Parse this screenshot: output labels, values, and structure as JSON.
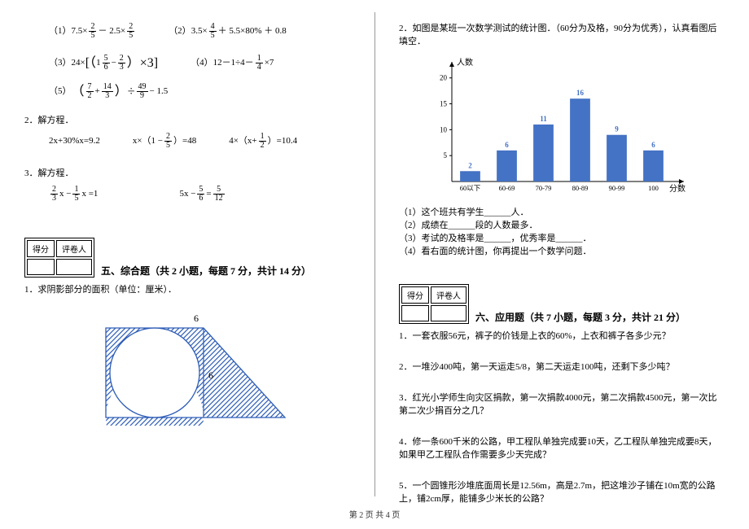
{
  "footer": "第 2 页  共 4 页",
  "left": {
    "eq1_label": "（1）7.5×",
    "eq1_frac1_num": "2",
    "eq1_frac1_den": "5",
    "eq1_mid": " － 2.5×",
    "eq1_frac2_num": "2",
    "eq1_frac2_den": "5",
    "eq2_label": "（2）",
    "eq2_a": "3.5×",
    "eq2_frac_num": "4",
    "eq2_frac_den": "5",
    "eq2_b": " ＋ 5.5×80% ＋ 0.8",
    "eq3_label": "（3）",
    "eq3_a": "24×",
    "eq3_lb": "[（",
    "eq3_f1n": "5",
    "eq3_f1d": "6",
    "eq3_minus": " − ",
    "eq3_f2n": "2",
    "eq3_f2d": "3",
    "eq3_rb": "）×3]",
    "eq4_label": "（4）12－1÷4－",
    "eq4_fn": "1",
    "eq4_fd": "4",
    "eq4_tail": "×7",
    "eq5_label": "（5）",
    "eq5_lp": "（",
    "eq5_f1n": "7",
    "eq5_f1d": "2",
    "eq5_plus": " + ",
    "eq5_f2n": "14",
    "eq5_f2d": "3",
    "eq5_rp": "）÷",
    "eq5_f3n": "49",
    "eq5_f3d": "9",
    "eq5_tail": " − 1.5",
    "h2": "2．解方程．",
    "s2a": "2x+30%x=9.2",
    "s2b_a": "x×（1 − ",
    "s2b_fn": "2",
    "s2b_fd": "5",
    "s2b_b": "）=48",
    "s2c_a": "4×（x+",
    "s2c_fn": "1",
    "s2c_fd": "2",
    "s2c_b": "）=10.4",
    "h3": "3．解方程．",
    "s3a_f1n": "2",
    "s3a_f1d": "3",
    "s3a_mid": " x − ",
    "s3a_f2n": "1",
    "s3a_f2d": "5",
    "s3a_tail": " x =1",
    "s3b_a": "5x − ",
    "s3b_f1n": "5",
    "s3b_f1d": "6",
    "s3b_eq": " = ",
    "s3b_f2n": "5",
    "s3b_f2d": "12",
    "score_h1": "得分",
    "score_h2": "评卷人",
    "sec5_title": "五、综合题（共 2 小题，每题 7 分，共计 14 分）",
    "q5_1": "1．求阴影部分的面积（单位：厘米）．",
    "geo_label": "6",
    "geo_label2": "6"
  },
  "right": {
    "q2_intro": "2．如图是某班一次数学测试的统计图．（60分为及格，90分为优秀），认真看图后填空．",
    "chart": {
      "ylabel": "人数",
      "xlabel": "分数",
      "categories": [
        "60以下",
        "60-69",
        "70-79",
        "80-89",
        "90-99",
        "100"
      ],
      "values": [
        2,
        6,
        11,
        16,
        9,
        6
      ],
      "bar_color": "#4472c4",
      "value_color": "#4472c4",
      "axis_color": "#000000",
      "yticks": [
        5,
        10,
        15,
        20
      ],
      "ymax": 22
    },
    "q2_1": "（1）这个班共有学生______人．",
    "q2_2": "（2）成绩在______段的人数最多．",
    "q2_3": "（3）考试的及格率是______，优秀率是______．",
    "q2_4": "（4）看右面的统计图，你再提出一个数学问题．",
    "score_h1": "得分",
    "score_h2": "评卷人",
    "sec6_title": "六、应用题（共 7 小题，每题 3 分，共计 21 分）",
    "p1": "1．一套衣服56元，裤子的价钱是上衣的60%，上衣和裤子各多少元？",
    "p2": "2．一堆沙400吨，第一天运走5/8，第二天运走100吨，还剩下多少吨？",
    "p3": "3．红光小学师生向灾区捐款，第一次捐款4000元，第二次捐款4500元，第一次比第二次少捐百分之几？",
    "p4": "4．修一条600千米的公路，甲工程队单独完成要10天，乙工程队单独完成要8天，如果甲乙工程队合作需要多少天完成？",
    "p5": "5．一个圆锥形沙堆底面周长是12.56m，高是2.7m，把这堆沙子铺在10m宽的公路上，铺2cm厚，能铺多少米长的公路？"
  }
}
